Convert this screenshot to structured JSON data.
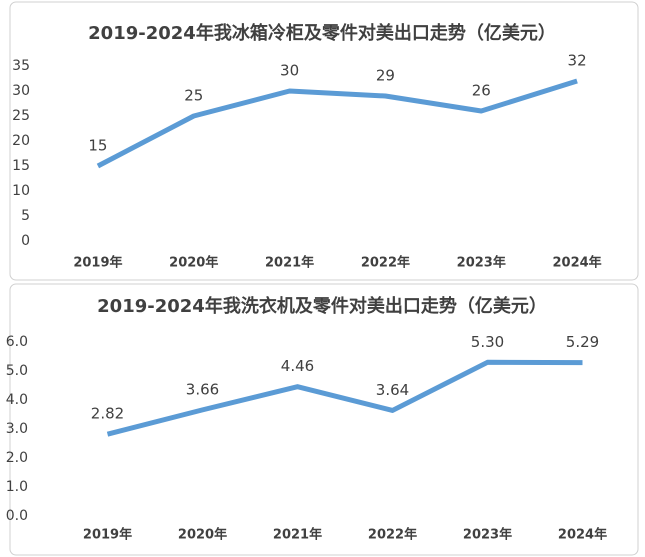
{
  "chart_data": [
    {
      "type": "line",
      "title": "2019-2024年我冰箱冷柜及零件对美出口走势（亿美元）",
      "categories": [
        "2019年",
        "2020年",
        "2021年",
        "2022年",
        "2023年",
        "2024年"
      ],
      "values": [
        15,
        25,
        30,
        29,
        26,
        32
      ],
      "color": "#5b9bd5",
      "ylim": [
        0,
        35
      ],
      "yticks": [
        0,
        5,
        10,
        15,
        20,
        25,
        30,
        35
      ],
      "grid": false
    },
    {
      "type": "line",
      "title": "2019-2024年我洗衣机及零件对美出口走势（亿美元）",
      "categories": [
        "2019年",
        "2020年",
        "2021年",
        "2022年",
        "2023年",
        "2024年"
      ],
      "values": [
        2.82,
        3.66,
        4.46,
        3.64,
        5.3,
        5.29
      ],
      "value_labels": [
        "2.82",
        "3.66",
        "4.46",
        "3.64",
        "5.30",
        "5.29"
      ],
      "color": "#5b9bd5",
      "ylim": [
        0,
        6
      ],
      "yticks": [
        {
          "value": 0,
          "label": "0.0"
        },
        {
          "value": 1,
          "label": "1.0"
        },
        {
          "value": 2,
          "label": "2.0"
        },
        {
          "value": 3,
          "label": "3.0"
        },
        {
          "value": 4,
          "label": "4.0"
        },
        {
          "value": 5,
          "label": "5.0"
        },
        {
          "value": 6,
          "label": "6.0"
        }
      ],
      "grid": false
    }
  ]
}
